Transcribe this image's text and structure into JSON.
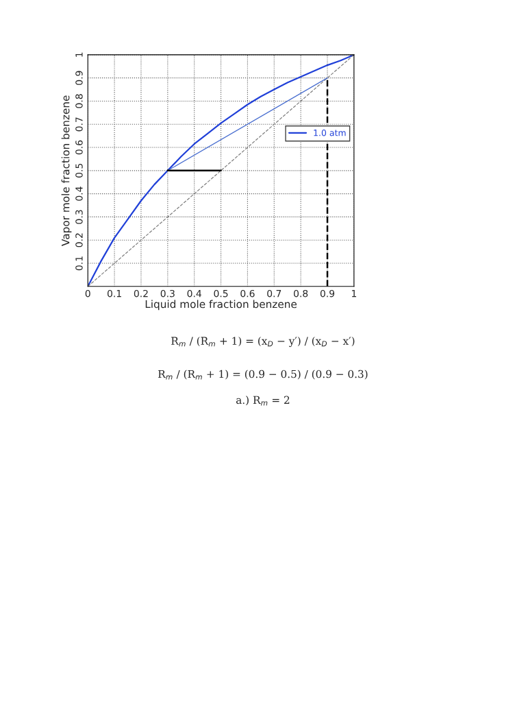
{
  "chart_data": {
    "type": "line",
    "xlabel": "Liquid mole fraction benzene",
    "ylabel": "Vapor mole fraction benzene",
    "xlim": [
      0,
      1
    ],
    "ylim": [
      0,
      1
    ],
    "xticks": [
      0,
      0.1,
      0.2,
      0.3,
      0.4,
      0.5,
      0.6,
      0.7,
      0.8,
      0.9,
      1
    ],
    "yticks": [
      0.1,
      0.2,
      0.3,
      0.4,
      0.5,
      0.6,
      0.7,
      0.8,
      0.9,
      1
    ],
    "grid": true,
    "legend": "right",
    "marker": "none",
    "series": [
      {
        "name": "1.0 atm",
        "color": "#2040d8",
        "line_style": "solid",
        "x": [
          0,
          0.05,
          0.1,
          0.15,
          0.2,
          0.25,
          0.3,
          0.35,
          0.4,
          0.45,
          0.5,
          0.55,
          0.6,
          0.65,
          0.7,
          0.75,
          0.8,
          0.85,
          0.9,
          0.95,
          1
        ],
        "values": [
          0,
          0.11,
          0.21,
          0.29,
          0.37,
          0.44,
          0.5,
          0.56,
          0.615,
          0.66,
          0.705,
          0.745,
          0.785,
          0.82,
          0.85,
          0.88,
          0.905,
          0.93,
          0.955,
          0.975,
          1
        ]
      },
      {
        "color": "#808080",
        "line_style": "dashed",
        "x": [
          0,
          1
        ],
        "values": [
          0,
          1
        ]
      },
      {
        "color": "#4a6fd0",
        "line_style": "solid",
        "x": [
          0.3,
          0.9
        ],
        "values": [
          0.5,
          0.9
        ]
      },
      {
        "color": "#000000",
        "line_style": "solid",
        "x": [
          0.3,
          0.5
        ],
        "values": [
          0.5,
          0.5
        ]
      },
      {
        "color": "#000000",
        "line_style": "dashed",
        "x": [
          0.9,
          0.9
        ],
        "values": [
          0,
          0.9
        ]
      }
    ],
    "annotations": [
      "R$_{m}$ / (R$_{m}$ + 1) = (x$_{D}$ − y′) / (x$_{D}$ − x′)",
      "R$_{m}$ / (R$_{m}$ + 1) = (0.9 − 0.5) / (0.9 − 0.3)",
      "a.) R$_{m}$ = 2"
    ]
  }
}
